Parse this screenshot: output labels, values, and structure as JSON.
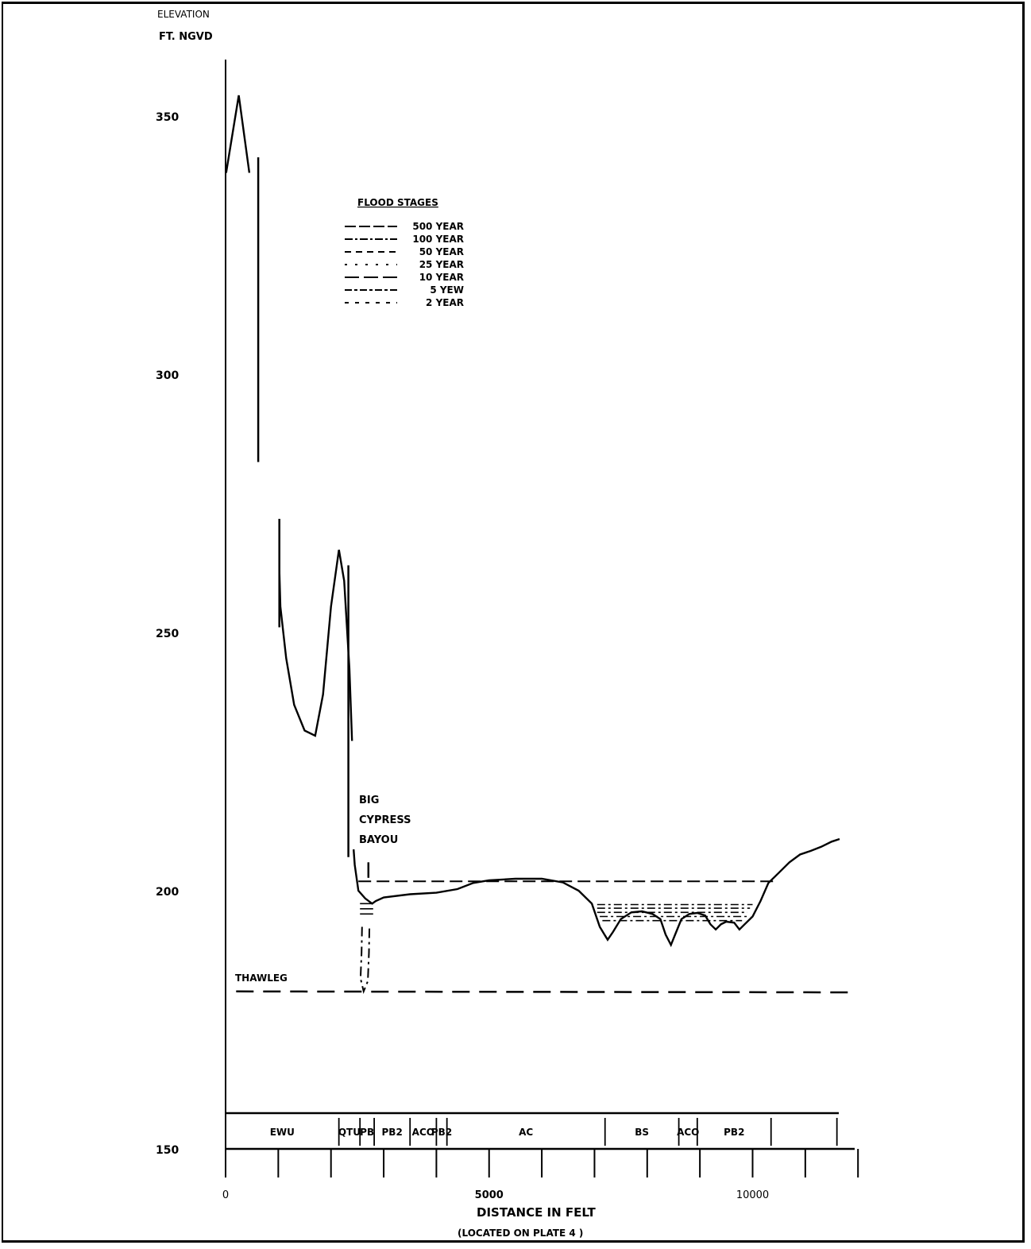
{
  "chart_data": {
    "type": "line",
    "title": "",
    "ylabel_line1": "ELEVATION",
    "ylabel_line2": "FT. NGVD",
    "xlabel": "DISTANCE IN FELT",
    "xlabel_note": "(LOCATED ON PLATE 4 )",
    "xlim": [
      0,
      12000
    ],
    "ylim": [
      150,
      360
    ],
    "x_ticks": [
      0,
      5000,
      10000
    ],
    "y_ticks": [
      150,
      200,
      250,
      300,
      350
    ],
    "x_tick_labels": [
      "0",
      "5000",
      "10000"
    ],
    "y_tick_labels": [
      "150",
      "200",
      "250",
      "300",
      "350"
    ],
    "legend": {
      "title": "FLOOD STAGES",
      "placement": "upper-left",
      "entries": [
        "500 YEAR",
        "100 YEAR",
        "50 YEAR",
        "25 YEAR",
        "10 YEAR",
        "5 YEW",
        "2 YEAR"
      ]
    },
    "annotations": {
      "thalweg": "THAWLEG",
      "channel": [
        "BIG",
        "CYPRESS",
        "BAYOU"
      ]
    },
    "series": [
      {
        "kind": "profile",
        "segments": [
          [
            [
              10,
              339
            ],
            [
              250,
              354
            ],
            [
              450,
              339
            ]
          ],
          [
            [
              1020,
              262
            ],
            [
              1040,
              255
            ],
            [
              1150,
              245
            ],
            [
              1300,
              236
            ],
            [
              1500,
              231
            ],
            [
              1700,
              230
            ],
            [
              1850,
              238
            ],
            [
              2000,
              255
            ],
            [
              2150,
              266
            ],
            [
              2250,
              260
            ],
            [
              2350,
              243
            ],
            [
              2400,
              229
            ]
          ],
          [
            [
              2430,
              208
            ],
            [
              2450,
              205
            ],
            [
              2520,
              200
            ],
            [
              2650,
              198.5
            ],
            [
              2780,
              197.5
            ],
            [
              2850,
              198
            ],
            [
              3000,
              198.7
            ],
            [
              3500,
              199.3
            ],
            [
              4000,
              199.6
            ],
            [
              4400,
              200.3
            ],
            [
              4700,
              201.5
            ],
            [
              5000,
              202
            ],
            [
              5500,
              202.3
            ],
            [
              6000,
              202.3
            ],
            [
              6400,
              201.6
            ],
            [
              6700,
              200
            ],
            [
              6950,
              197.5
            ],
            [
              7100,
              193
            ],
            [
              7250,
              190.5
            ],
            [
              7350,
              192
            ],
            [
              7500,
              194.5
            ],
            [
              7700,
              195.8
            ],
            [
              7900,
              196
            ],
            [
              8100,
              195.5
            ],
            [
              8250,
              194.5
            ],
            [
              8350,
              191.5
            ],
            [
              8450,
              189.5
            ],
            [
              8550,
              192
            ],
            [
              8650,
              194.5
            ],
            [
              8800,
              195.5
            ],
            [
              8950,
              195.7
            ],
            [
              9100,
              195.2
            ],
            [
              9200,
              193.5
            ],
            [
              9300,
              192.5
            ],
            [
              9400,
              193.5
            ],
            [
              9500,
              194
            ],
            [
              9650,
              193.8
            ],
            [
              9750,
              192.5
            ],
            [
              9850,
              193.5
            ],
            [
              10000,
              195
            ],
            [
              10150,
              198
            ],
            [
              10300,
              201.5
            ],
            [
              10500,
              203.5
            ],
            [
              10700,
              205.5
            ],
            [
              10900,
              207
            ],
            [
              11100,
              207.7
            ],
            [
              11300,
              208.5
            ],
            [
              11500,
              209.5
            ],
            [
              11650,
              210
            ]
          ]
        ]
      },
      {
        "kind": "stage-500",
        "segments": [
          [
            [
              2520,
              201.8
            ],
            [
              10450,
              201.8
            ]
          ]
        ]
      },
      {
        "kind": "stages-left-channel",
        "segments": [
          [
            [
              2550,
              197.5
            ],
            [
              2800,
              197.5
            ]
          ],
          [
            [
              2550,
              196.5
            ],
            [
              2800,
              196.5
            ]
          ],
          [
            [
              2550,
              195.5
            ],
            [
              2800,
              195.5
            ]
          ]
        ]
      },
      {
        "kind": "stages-right-basin",
        "segments": [
          [
            [
              7050,
              197.3
            ],
            [
              10000,
              197.3
            ]
          ],
          [
            [
              7050,
              196.6
            ],
            [
              9950,
              196.6
            ]
          ],
          [
            [
              7050,
              195.8
            ],
            [
              9900,
              195.8
            ]
          ],
          [
            [
              7100,
              195.0
            ],
            [
              9950,
              195.0
            ]
          ],
          [
            [
              7150,
              194.2
            ],
            [
              9800,
              194.2
            ]
          ]
        ]
      },
      {
        "kind": "channel-dashdot",
        "segments": [
          [
            [
              2590,
              193
            ],
            [
              2580,
              188
            ],
            [
              2560,
              183
            ],
            [
              2620,
              180.5
            ],
            [
              2700,
              182.5
            ],
            [
              2720,
              188
            ],
            [
              2730,
              193
            ]
          ]
        ]
      },
      {
        "kind": "thalweg",
        "segments": [
          [
            [
              200,
              180.5
            ],
            [
              11900,
              180.3
            ]
          ]
        ]
      },
      {
        "kind": "vertical-bar",
        "segments": [
          [
            [
              620,
              342
            ],
            [
              620,
              283
            ]
          ],
          [
            [
              1020,
              272
            ],
            [
              1020,
              251
            ]
          ],
          [
            [
              2330,
              263
            ],
            [
              2330,
              206.5
            ]
          ],
          [
            [
              2710,
              205.5
            ],
            [
              2710,
              202.5
            ]
          ]
        ]
      }
    ],
    "geology_bands": {
      "labels": [
        "EWU",
        "QTU",
        "PB",
        "PB2",
        "ACO",
        "PB2",
        "AC",
        "BS",
        "ACO",
        "PB2"
      ],
      "dividers": [
        2150,
        2550,
        2820,
        3500,
        4000,
        4200,
        7200,
        8600,
        8950,
        10350,
        11600
      ]
    },
    "grid": false,
    "legend_placement": "upper-left"
  }
}
